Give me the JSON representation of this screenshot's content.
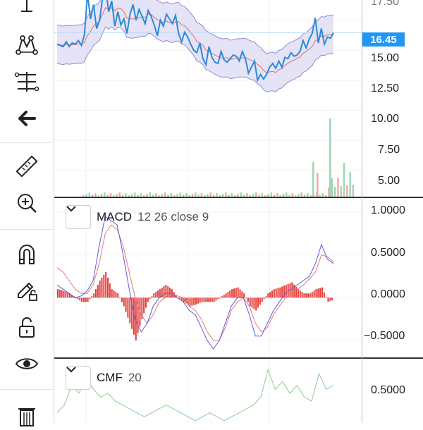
{
  "toolbar": {
    "tools": [
      {
        "id": "cross-line",
        "icon": "cross-line-icon"
      },
      {
        "id": "pattern",
        "icon": "pattern-icon"
      },
      {
        "id": "fib",
        "icon": "fib-levels-icon"
      },
      {
        "id": "back",
        "icon": "back-arrow-icon"
      },
      {
        "id": "ruler",
        "icon": "ruler-icon"
      },
      {
        "id": "zoom",
        "icon": "zoom-in-icon"
      },
      {
        "id": "magnet",
        "icon": "magnet-icon"
      },
      {
        "id": "lock-drawing",
        "icon": "pencil-lock-icon"
      },
      {
        "id": "lock",
        "icon": "unlock-icon"
      },
      {
        "id": "eye",
        "icon": "eye-icon"
      },
      {
        "id": "trash",
        "icon": "trash-icon"
      }
    ]
  },
  "price_pane": {
    "last_price": "16.45",
    "ticks": [
      "17.50",
      "15.00",
      "12.50",
      "10.00",
      "7.50",
      "5.00"
    ],
    "colors": {
      "price_line": "#2a8ad8",
      "band_fill": "#dcdaf3",
      "band_edge": "#8e8ccf",
      "basis": "#e36b6b",
      "volume_up": "#9fd7b0",
      "volume_down": "#f2a7a7",
      "last_price": "#2196f3"
    }
  },
  "macd_pane": {
    "name": "MACD",
    "params": "12 26 close 9",
    "ticks": [
      "1.0000",
      "0.5000",
      "0.0000",
      "−0.5000"
    ],
    "colors": {
      "macd": "#5a5ae0",
      "signal": "#e67878",
      "histogram": "#e53935"
    }
  },
  "cmf_pane": {
    "name": "CMF",
    "params": "20",
    "ticks": [
      "0.5000"
    ],
    "colors": {
      "cmf": "#8ccc8c"
    }
  },
  "chart_data": [
    {
      "type": "line",
      "title": "",
      "series": [
        {
          "values": [
            15.5,
            15.4,
            15.3,
            15.7,
            15.3,
            15.6,
            15.5,
            15.8,
            15.4,
            16.3,
            19.7,
            17.6,
            18.8,
            16.8,
            17.5,
            19.4,
            20.1,
            18.2,
            19.1,
            17.0,
            18.2,
            17.1,
            17.6,
            16.4,
            18.0,
            18.8,
            17.5,
            18.4,
            17.8,
            17.2,
            18.3,
            17.8,
            17.1,
            16.2,
            17.5,
            17.0,
            18.0,
            17.6,
            17.2,
            17.9,
            16.4,
            15.7,
            16.5,
            16.1,
            15.5,
            15.0,
            14.8,
            15.6,
            14.3,
            13.8,
            15.3,
            14.4,
            14.0,
            13.9,
            14.9,
            14.2,
            14.0,
            14.3,
            14.6,
            14.5,
            14.1,
            14.9,
            14.3,
            13.1,
            13.6,
            14.1,
            12.5,
            13.0,
            12.6,
            13.0,
            13.6,
            13.9,
            13.5,
            14.1,
            13.6,
            14.4,
            14.3,
            14.8,
            14.5,
            14.6,
            14.9,
            15.8,
            15.2,
            15.9,
            16.4,
            17.7,
            15.6,
            16.8,
            15.5,
            16.1,
            16.0,
            16.45
          ]
        }
      ],
      "ylim": [
        4.0,
        19.0
      ]
    },
    {
      "type": "line",
      "series": [
        {
          "values": [
            0.15,
            0.1,
            0.05,
            0.0,
            0.02,
            0.08,
            0.2,
            0.6,
            0.95,
            0.9,
            0.85,
            0.5,
            0.1,
            -0.25,
            -0.4,
            -0.3,
            -0.1,
            0.0,
            0.05,
            0.05,
            0.0,
            -0.05,
            -0.15,
            -0.2,
            -0.35,
            -0.5,
            -0.6,
            -0.5,
            -0.3,
            -0.1,
            0.0,
            0.0,
            -0.2,
            -0.45,
            -0.45,
            -0.3,
            -0.15,
            -0.05,
            0.05,
            0.1,
            0.15,
            0.2,
            0.25,
            0.4,
            0.62,
            0.45,
            0.4
          ]
        },
        {
          "values": [
            0.35,
            0.3,
            0.2,
            0.1,
            0.05,
            0.05,
            0.15,
            0.4,
            0.75,
            0.85,
            0.8,
            0.6,
            0.3,
            0.0,
            -0.2,
            -0.3,
            -0.2,
            -0.05,
            0.0,
            0.05,
            0.02,
            0.0,
            -0.1,
            -0.15,
            -0.25,
            -0.4,
            -0.5,
            -0.5,
            -0.35,
            -0.15,
            -0.05,
            0.0,
            -0.1,
            -0.3,
            -0.4,
            -0.35,
            -0.2,
            -0.1,
            0.0,
            0.05,
            0.1,
            0.15,
            0.22,
            0.3,
            0.5,
            0.48,
            0.42
          ]
        },
        {
          "values": [
            0.1,
            0.08,
            0.05,
            0.0,
            -0.05,
            -0.05,
            0.05,
            0.2,
            0.3,
            0.1,
            0.05,
            -0.1,
            -0.3,
            -0.5,
            -0.25,
            -0.05,
            0.05,
            0.1,
            0.15,
            0.1,
            0.0,
            -0.05,
            -0.1,
            -0.08,
            -0.05,
            -0.05,
            -0.05,
            0.0,
            0.05,
            0.1,
            0.12,
            0.05,
            -0.1,
            -0.15,
            -0.05,
            0.05,
            0.1,
            0.12,
            0.15,
            0.18,
            0.1,
            0.05,
            0.05,
            0.1,
            0.12,
            -0.05,
            -0.02
          ]
        }
      ],
      "ylim": [
        -0.6,
        1.05
      ]
    },
    {
      "type": "line",
      "series": [
        {
          "values": [
            0.1,
            0.2,
            0.45,
            0.35,
            0.55,
            0.4,
            0.3,
            0.35,
            0.25,
            0.2,
            0.15,
            0.1,
            0.05,
            0.1,
            0.15,
            0.2,
            0.15,
            0.1,
            0.05,
            0.0,
            0.05,
            0.1,
            0.05,
            0.0,
            0.05,
            0.1,
            0.15,
            0.2,
            0.3,
            0.65,
            0.4,
            0.5,
            0.35,
            0.45,
            0.3,
            0.25,
            0.6,
            0.4,
            0.45
          ]
        }
      ],
      "ylim": [
        -0.2,
        0.7
      ]
    }
  ]
}
